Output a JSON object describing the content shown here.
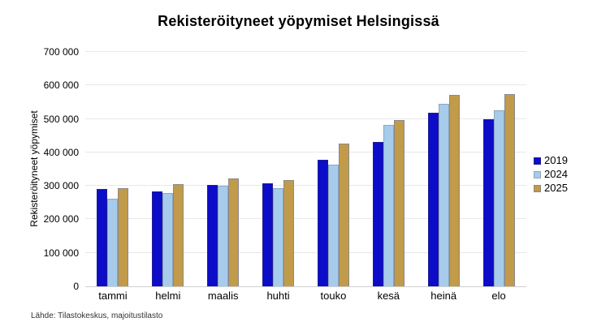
{
  "title": "Rekisteröityneet yöpymiset Helsingissä",
  "source": "Lähde: Tilastokeskus, majoitustilasto",
  "colors": {
    "series_2019_fill": "#0c0cc9",
    "series_2019_border": "#1f1f93",
    "series_2024_fill": "#a7cbeb",
    "series_2024_border": "#8ba6bd",
    "series_2025_fill": "#c19b49",
    "series_2025_border": "#898989",
    "gridline": "#e8e8e8",
    "axis_line": "#cfcfcf",
    "text": "#000000"
  },
  "chart_data": {
    "type": "bar",
    "title": "Rekisteröityneet yöpymiset Helsingissä",
    "xlabel": "",
    "ylabel": "Rekisteröityneet yöpymiset",
    "categories": [
      "tammi",
      "helmi",
      "maalis",
      "huhti",
      "touko",
      "kesä",
      "heinä",
      "elo"
    ],
    "series": [
      {
        "name": "2019",
        "color": "#0c0cc9",
        "border": "#1f1f93",
        "values": [
          291000,
          284000,
          303000,
          308000,
          379000,
          430000,
          518000,
          500000
        ]
      },
      {
        "name": "2024",
        "color": "#a7cbeb",
        "border": "#8ba6bd",
        "values": [
          262000,
          279000,
          300000,
          294000,
          363000,
          482000,
          544000,
          526000
        ]
      },
      {
        "name": "2025",
        "color": "#c19b49",
        "border": "#898989",
        "values": [
          294000,
          306000,
          322000,
          318000,
          427000,
          496000,
          572000,
          573000
        ]
      }
    ],
    "ylim": [
      0,
      700000
    ],
    "ytick_step": 100000,
    "ytick_labels": [
      "0",
      "100 000",
      "200 000",
      "300 000",
      "400 000",
      "500 000",
      "600 000",
      "700 000"
    ],
    "grid": true,
    "legend_position": "right"
  }
}
